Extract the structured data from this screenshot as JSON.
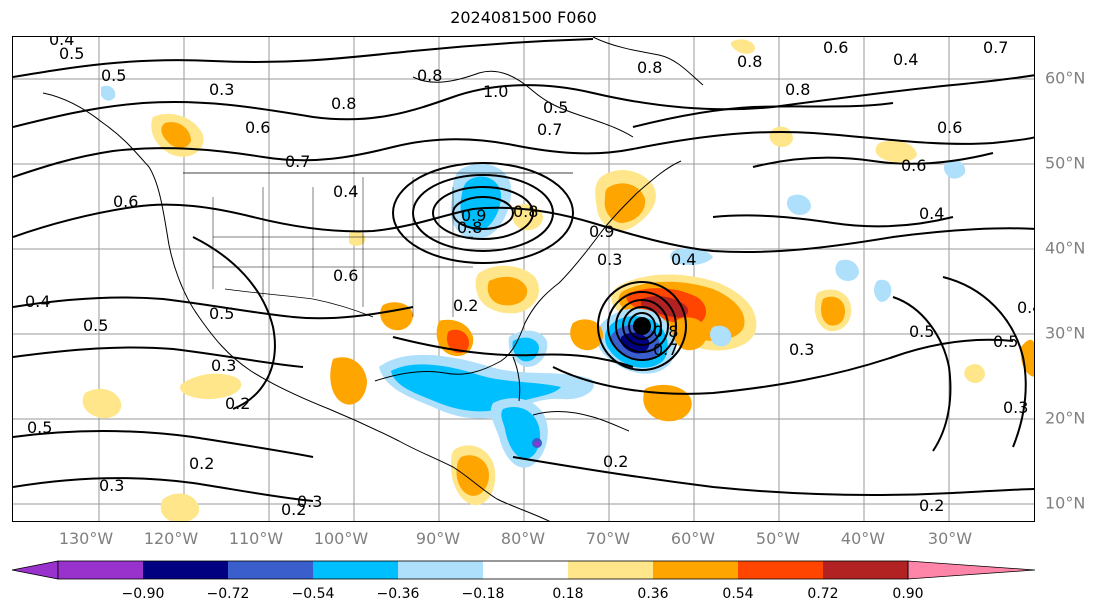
{
  "title": "2024081500 F060",
  "lon_labels": [
    "130°W",
    "120°W",
    "110°W",
    "100°W",
    "90°W",
    "80°W",
    "70°W",
    "60°W",
    "50°W",
    "40°W",
    "30°W"
  ],
  "lat_labels": [
    "60°N",
    "50°N",
    "40°N",
    "30°N",
    "20°N",
    "10°N"
  ],
  "contour_labels": [
    "0.4",
    "0.5",
    "0.5",
    "0.3",
    "0.6",
    "0.7",
    "0.8",
    "0.8",
    "1.0",
    "0.7",
    "0.5",
    "0.8",
    "0.8",
    "0.6",
    "0.8",
    "0.4",
    "0.7",
    "0.6",
    "0.4",
    "0.8",
    "0.8",
    "0.6",
    "0.6",
    "0.4",
    "0.6",
    "0.4",
    "0.5",
    "0.2",
    "0.2",
    "0.3",
    "0.2",
    "0.3",
    "0.2",
    "0.5",
    "0.3",
    "0.2",
    "0.5",
    "0.3",
    "0.4",
    "0.9",
    "0.8",
    "0.7",
    "0.3",
    "0.2",
    "0.5",
    "0.5",
    "0.3",
    "0.4",
    "0.9"
  ],
  "colorbar": {
    "ticks": [
      "−0.90",
      "−0.72",
      "−0.54",
      "−0.36",
      "−0.18",
      "0.18",
      "0.36",
      "0.54",
      "0.72",
      "0.90"
    ],
    "colors": [
      "#9932cc",
      "#000080",
      "#3a5fcd",
      "#00bfff",
      "#aedffb",
      "#ffffff",
      "#ffe68a",
      "#ffa500",
      "#ff4500",
      "#b22222",
      "#ff85a8"
    ]
  },
  "shading_colors": {
    "yellow": "#ffe68a",
    "orange": "#ffa500",
    "red": "#ff4500",
    "darkred": "#b22222",
    "lightblue": "#aedffb",
    "blue": "#00bfff",
    "midblue": "#3a5fcd",
    "navy": "#000080",
    "purple": "#9932cc"
  }
}
